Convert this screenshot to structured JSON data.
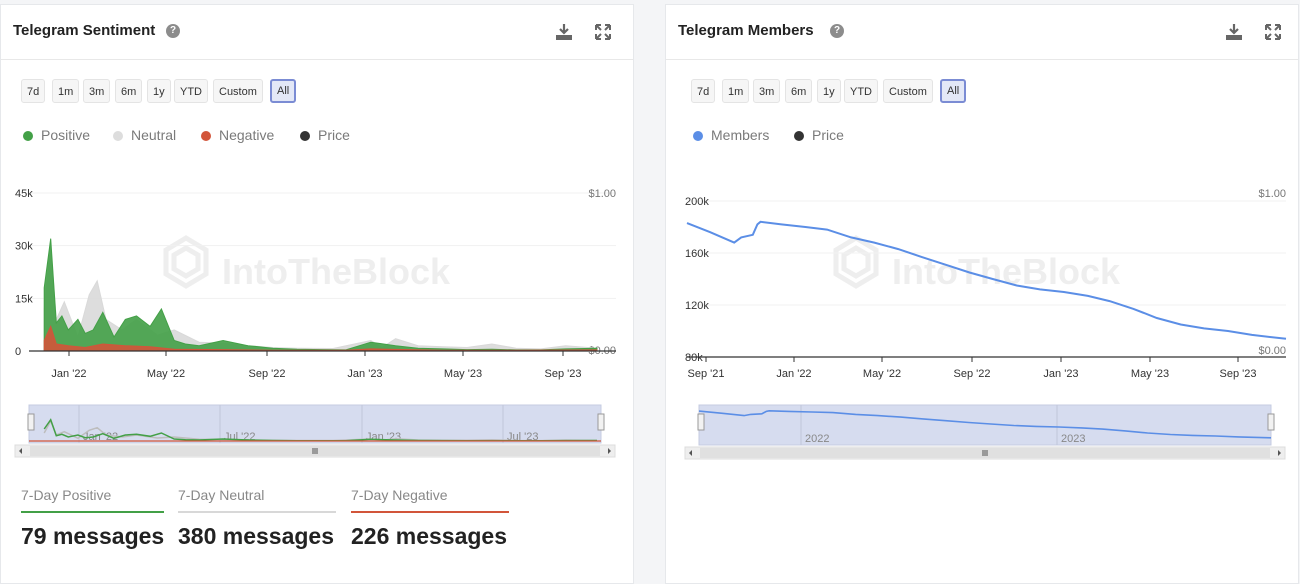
{
  "left": {
    "title": "Telegram Sentiment",
    "ranges": [
      "7d",
      "1m",
      "3m",
      "6m",
      "1y",
      "YTD",
      "Custom",
      "All"
    ],
    "active_range": "All",
    "legend": [
      {
        "label": "Positive",
        "color": "#43a047"
      },
      {
        "label": "Neutral",
        "color": "#dddddd"
      },
      {
        "label": "Negative",
        "color": "#d2553a"
      },
      {
        "label": "Price",
        "color": "#333333"
      }
    ],
    "watermark": "IntoTheBlock",
    "stats": [
      {
        "label": "7-Day Positive",
        "value": "79 messages",
        "color": "#43a047"
      },
      {
        "label": "7-Day Neutral",
        "value": "380 messages",
        "color": "#d8d8d8"
      },
      {
        "label": "7-Day Negative",
        "value": "226 messages",
        "color": "#d2553a"
      }
    ],
    "chart_data": {
      "type": "area",
      "y_ticks": [
        "0",
        "15k",
        "30k",
        "45k"
      ],
      "y_right_ticks": [
        "$0.00",
        "$1.00"
      ],
      "x_ticks": [
        "Jan '22",
        "May '22",
        "Sep '22",
        "Jan '23",
        "May '23",
        "Sep '23"
      ],
      "navigator_ticks": [
        "Jan '22",
        "Jul '22",
        "Jan '23",
        "Jul '23"
      ],
      "ylim": [
        0,
        45000
      ],
      "x_domain": [
        "2021-11-01",
        "2023-10-15"
      ],
      "series": [
        {
          "name": "Neutral",
          "color": "#d9d9d9",
          "points": [
            [
              "2021-11-20",
              12000
            ],
            [
              "2021-11-28",
              30000
            ],
            [
              "2021-12-05",
              9000
            ],
            [
              "2021-12-15",
              14000
            ],
            [
              "2022-01-01",
              4000
            ],
            [
              "2022-01-15",
              16000
            ],
            [
              "2022-01-25",
              20000
            ],
            [
              "2022-02-05",
              9000
            ],
            [
              "2022-02-25",
              6000
            ],
            [
              "2022-03-15",
              9000
            ],
            [
              "2022-04-10",
              4500
            ],
            [
              "2022-05-01",
              6000
            ],
            [
              "2022-06-01",
              2500
            ],
            [
              "2022-07-01",
              2200
            ],
            [
              "2022-08-01",
              1500
            ],
            [
              "2022-09-01",
              1000
            ],
            [
              "2022-10-01",
              800
            ],
            [
              "2022-11-15",
              700
            ],
            [
              "2023-01-01",
              3000
            ],
            [
              "2023-01-15",
              1000
            ],
            [
              "2023-02-01",
              3500
            ],
            [
              "2023-03-01",
              1500
            ],
            [
              "2023-04-01",
              1200
            ],
            [
              "2023-05-01",
              1000
            ],
            [
              "2023-06-01",
              2000
            ],
            [
              "2023-07-01",
              800
            ],
            [
              "2023-08-01",
              600
            ],
            [
              "2023-09-01",
              1500
            ],
            [
              "2023-10-10",
              800
            ]
          ]
        },
        {
          "name": "Positive",
          "color": "#43a047",
          "points": [
            [
              "2021-11-20",
              18000
            ],
            [
              "2021-11-28",
              32000
            ],
            [
              "2021-12-05",
              8000
            ],
            [
              "2021-12-12",
              10000
            ],
            [
              "2021-12-20",
              6000
            ],
            [
              "2022-01-01",
              9000
            ],
            [
              "2022-01-10",
              5000
            ],
            [
              "2022-01-20",
              6000
            ],
            [
              "2022-02-01",
              11000
            ],
            [
              "2022-02-15",
              4000
            ],
            [
              "2022-03-01",
              9000
            ],
            [
              "2022-03-15",
              10000
            ],
            [
              "2022-04-01",
              7000
            ],
            [
              "2022-04-15",
              12000
            ],
            [
              "2022-05-01",
              3000
            ],
            [
              "2022-05-15",
              2000
            ],
            [
              "2022-06-01",
              1500
            ],
            [
              "2022-07-01",
              3000
            ],
            [
              "2022-08-01",
              1500
            ],
            [
              "2022-09-01",
              800
            ],
            [
              "2022-10-01",
              500
            ],
            [
              "2022-11-01",
              400
            ],
            [
              "2022-12-01",
              300
            ],
            [
              "2023-01-01",
              2500
            ],
            [
              "2023-02-01",
              1500
            ],
            [
              "2023-03-01",
              800
            ],
            [
              "2023-04-01",
              600
            ],
            [
              "2023-05-01",
              400
            ],
            [
              "2023-06-01",
              500
            ],
            [
              "2023-07-01",
              300
            ],
            [
              "2023-08-01",
              300
            ],
            [
              "2023-09-01",
              600
            ],
            [
              "2023-10-10",
              800
            ]
          ]
        },
        {
          "name": "Negative",
          "color": "#d2553a",
          "points": [
            [
              "2021-11-20",
              3000
            ],
            [
              "2021-11-28",
              7000
            ],
            [
              "2021-12-05",
              2000
            ],
            [
              "2021-12-20",
              1500
            ],
            [
              "2022-01-10",
              1000
            ],
            [
              "2022-02-01",
              2000
            ],
            [
              "2022-03-01",
              1500
            ],
            [
              "2022-04-01",
              1200
            ],
            [
              "2022-05-01",
              500
            ],
            [
              "2022-07-01",
              400
            ],
            [
              "2022-09-01",
              200
            ],
            [
              "2022-12-01",
              200
            ],
            [
              "2023-01-01",
              600
            ],
            [
              "2023-04-01",
              200
            ],
            [
              "2023-07-01",
              200
            ],
            [
              "2023-10-10",
              300
            ]
          ]
        }
      ]
    }
  },
  "right": {
    "title": "Telegram Members",
    "ranges": [
      "7d",
      "1m",
      "3m",
      "6m",
      "1y",
      "YTD",
      "Custom",
      "All"
    ],
    "active_range": "All",
    "legend": [
      {
        "label": "Members",
        "color": "#5b8ee6"
      },
      {
        "label": "Price",
        "color": "#333333"
      }
    ],
    "watermark": "IntoTheBlock",
    "chart_data": {
      "type": "line",
      "y_ticks": [
        "80k",
        "120k",
        "160k",
        "200k"
      ],
      "y_right_ticks": [
        "$0.00",
        "$1.00"
      ],
      "x_ticks": [
        "Sep '21",
        "Jan '22",
        "May '22",
        "Sep '22",
        "Jan '23",
        "May '23",
        "Sep '23"
      ],
      "navigator_ticks": [
        "2022",
        "2023"
      ],
      "ylim": [
        80000,
        200000
      ],
      "x_domain": [
        "2021-09-01",
        "2023-10-15"
      ],
      "series": [
        {
          "name": "Members",
          "color": "#5b8ee6",
          "points": [
            [
              "2021-09-01",
              183000
            ],
            [
              "2021-10-01",
              176000
            ],
            [
              "2021-11-01",
              168000
            ],
            [
              "2021-11-10",
              172000
            ],
            [
              "2021-11-25",
              174000
            ],
            [
              "2021-12-01",
              182000
            ],
            [
              "2021-12-05",
              184000
            ],
            [
              "2022-01-01",
              182000
            ],
            [
              "2022-02-01",
              180000
            ],
            [
              "2022-03-01",
              178000
            ],
            [
              "2022-04-01",
              172000
            ],
            [
              "2022-05-01",
              168000
            ],
            [
              "2022-06-01",
              163000
            ],
            [
              "2022-07-01",
              157000
            ],
            [
              "2022-08-01",
              151000
            ],
            [
              "2022-09-01",
              145000
            ],
            [
              "2022-10-01",
              140000
            ],
            [
              "2022-11-01",
              135000
            ],
            [
              "2022-12-01",
              132000
            ],
            [
              "2023-01-01",
              130000
            ],
            [
              "2023-02-01",
              127000
            ],
            [
              "2023-03-01",
              123000
            ],
            [
              "2023-04-01",
              117000
            ],
            [
              "2023-05-01",
              110000
            ],
            [
              "2023-06-01",
              105000
            ],
            [
              "2023-07-01",
              102000
            ],
            [
              "2023-08-01",
              100000
            ],
            [
              "2023-09-01",
              97000
            ],
            [
              "2023-10-15",
              94000
            ]
          ]
        }
      ]
    }
  }
}
